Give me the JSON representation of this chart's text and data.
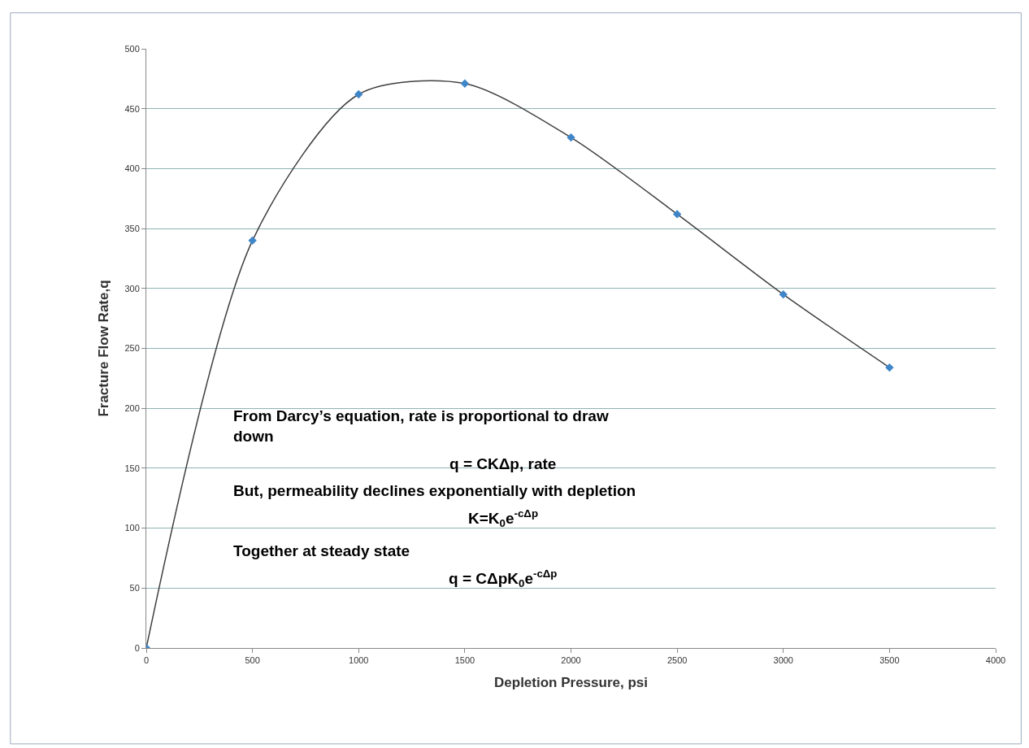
{
  "chart_data": {
    "type": "line",
    "xlabel": "Depletion Pressure, psi",
    "ylabel": "Fracture Flow Rate,q",
    "x": [
      0,
      500,
      1000,
      1500,
      2000,
      2500,
      3000,
      3500
    ],
    "series": [
      {
        "color": "#3f86c9",
        "values": [
          0,
          340,
          462,
          471,
          426,
          362,
          295,
          234
        ]
      }
    ],
    "xlim": [
      0,
      4000
    ],
    "ylim": [
      0,
      500
    ],
    "xticks": [
      0,
      500,
      1000,
      1500,
      2000,
      2500,
      3000,
      3500,
      4000
    ],
    "yticks": [
      0,
      50,
      100,
      150,
      200,
      250,
      300,
      350,
      400,
      450,
      500
    ],
    "grid": "y",
    "marker": "diamond",
    "line_style": "solid",
    "legend": false,
    "annotations": [
      "From Darcy’s equation, rate is proportional to draw down",
      "q = CKΔp, rate",
      "But, permeability declines exponentially with depletion",
      "K=K$_{0}$e$^{-cΔp}$",
      "Together at steady state",
      "q = CΔpK$_{0}$e$^{-cΔp}$"
    ]
  }
}
